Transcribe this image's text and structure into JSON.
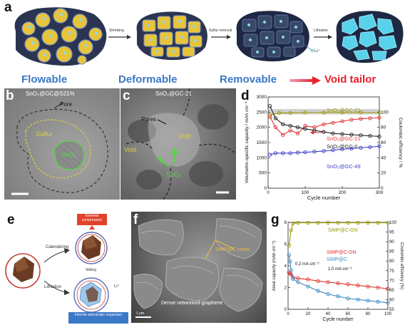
{
  "panels": {
    "a": {
      "label": "a",
      "arrows": [
        "Shrinking",
        "Sulfur removal",
        "Lithiation"
      ],
      "ion_label": "Li⁺",
      "categories": [
        {
          "text": "Flowable",
          "color": "#3b78c3"
        },
        {
          "text": "Deformable",
          "color": "#3b78c3"
        },
        {
          "text": "Removable",
          "color": "#3b78c3"
        },
        {
          "text": "Void tailor",
          "color": "#e8202a"
        }
      ]
    },
    "b": {
      "label": "b",
      "title": "SnO₂@GC@S21%",
      "labels": [
        "Pore",
        "Sulfur",
        "SnO₂"
      ]
    },
    "c": {
      "label": "c",
      "title": "SnO₂@GC-21",
      "labels": [
        "Pores",
        "Void",
        "Void",
        "SnO₂"
      ]
    },
    "d": {
      "label": "d"
    },
    "e": {
      "label": "e",
      "labels": [
        "External compression",
        "Calendering",
        "Sliding",
        "Lithiation",
        "Li⁺",
        "Internal anisotropic expansion"
      ]
    },
    "f": {
      "label": "f",
      "labels": [
        "SiMP@C cores",
        "Dense networked-graphene",
        "1 μm"
      ]
    },
    "g": {
      "label": "g"
    }
  },
  "chart_data": [
    {
      "panel": "d",
      "type": "scatter",
      "xlabel": "Cycle number",
      "ylabel": "Volumetric-specific capacity / mAh cm⁻³",
      "y2label": "Coulombic efficiency / %",
      "xlim": [
        0,
        300
      ],
      "ylim": [
        0,
        3000
      ],
      "y2lim": [
        0,
        120
      ],
      "xticks": [
        0,
        100,
        200,
        300
      ],
      "yticks": [
        0,
        500,
        1000,
        1500,
        2000,
        2500,
        3000
      ],
      "y2ticks": [
        0,
        20,
        40,
        60,
        80,
        100
      ],
      "series": [
        {
          "name": "SnO₂@GC-21",
          "axis": "y2",
          "color": "#9a9a00",
          "points": [
            [
              5,
              96
            ],
            [
              30,
              99
            ],
            [
              60,
              99
            ],
            [
              100,
              99.5
            ],
            [
              150,
              99.5
            ],
            [
              200,
              99.5
            ],
            [
              250,
              99.5
            ],
            [
              300,
              99.5
            ]
          ]
        },
        {
          "name": "SnO₂@GC-21",
          "axis": "y",
          "color": "#e0312f",
          "points": [
            [
              5,
              2350
            ],
            [
              20,
              2000
            ],
            [
              40,
              1750
            ],
            [
              60,
              1900
            ],
            [
              80,
              1800
            ],
            [
              100,
              2050
            ],
            [
              125,
              2000
            ],
            [
              150,
              2100
            ],
            [
              175,
              2150
            ],
            [
              200,
              2200
            ],
            [
              225,
              2250
            ],
            [
              250,
              2280
            ],
            [
              275,
              2300
            ],
            [
              300,
              2320
            ]
          ]
        },
        {
          "name": "SnO₂@GC-0",
          "axis": "y",
          "color": "#222222",
          "points": [
            [
              5,
              2700
            ],
            [
              20,
              2300
            ],
            [
              40,
              2100
            ],
            [
              60,
              2050
            ],
            [
              80,
              2000
            ],
            [
              100,
              1950
            ],
            [
              125,
              1900
            ],
            [
              150,
              1850
            ],
            [
              175,
              1800
            ],
            [
              200,
              1780
            ],
            [
              225,
              1760
            ],
            [
              250,
              1740
            ],
            [
              275,
              1720
            ],
            [
              300,
              1700
            ]
          ]
        },
        {
          "name": "SnO₂@GC-49",
          "axis": "y",
          "color": "#3c3cc8",
          "points": [
            [
              5,
              1100
            ],
            [
              20,
              1150
            ],
            [
              40,
              1150
            ],
            [
              60,
              1150
            ],
            [
              80,
              1170
            ],
            [
              100,
              1180
            ],
            [
              125,
              1200
            ],
            [
              150,
              1220
            ],
            [
              175,
              1250
            ],
            [
              200,
              1280
            ],
            [
              225,
              1300
            ],
            [
              250,
              1330
            ],
            [
              275,
              1350
            ],
            [
              300,
              1380
            ]
          ]
        }
      ]
    },
    {
      "panel": "g",
      "type": "scatter",
      "xlabel": "Cycle number",
      "ylabel": "Areal capacity (mAh cm⁻²)",
      "y2label": "Coulombic efficiency (%)",
      "xlim": [
        0,
        100
      ],
      "ylim": [
        0,
        8
      ],
      "y2lim": [
        55,
        100
      ],
      "xticks": [
        0,
        20,
        40,
        60,
        80,
        100
      ],
      "yticks": [
        0,
        2,
        4,
        6,
        8
      ],
      "y2ticks": [
        55,
        60,
        65,
        70,
        75,
        80,
        85,
        90,
        95,
        100
      ],
      "annotations": [
        "0.2 mA cm⁻²",
        "1.0 mA cm⁻²"
      ],
      "series": [
        {
          "name": "SiMP@C-GN",
          "axis": "y2",
          "color": "#9a9a00",
          "points": [
            [
              1,
              88
            ],
            [
              3,
              96
            ],
            [
              5,
              99.5
            ],
            [
              10,
              99.8
            ],
            [
              20,
              99.8
            ],
            [
              30,
              99.8
            ],
            [
              40,
              99.8
            ],
            [
              50,
              99.8
            ],
            [
              60,
              99.8
            ],
            [
              70,
              99.8
            ],
            [
              80,
              99.8
            ],
            [
              90,
              99.8
            ],
            [
              100,
              99.8
            ]
          ]
        },
        {
          "name": "SiMP@C-GN",
          "axis": "y",
          "color": "#e0312f",
          "points": [
            [
              1,
              3.4
            ],
            [
              2,
              3.3
            ],
            [
              3,
              3.2
            ],
            [
              5,
              2.95
            ],
            [
              10,
              2.85
            ],
            [
              20,
              2.75
            ],
            [
              30,
              2.6
            ],
            [
              40,
              2.5
            ],
            [
              50,
              2.4
            ],
            [
              60,
              2.3
            ],
            [
              70,
              2.2
            ],
            [
              80,
              2.1
            ],
            [
              90,
              2.0
            ],
            [
              100,
              1.9
            ]
          ]
        },
        {
          "name": "SiMP@C",
          "axis": "y",
          "color": "#3c8cc8",
          "points": [
            [
              1,
              5.0
            ],
            [
              2,
              4.4
            ],
            [
              3,
              3.6
            ],
            [
              5,
              2.8
            ],
            [
              10,
              2.5
            ],
            [
              20,
              2.1
            ],
            [
              30,
              1.7
            ],
            [
              40,
              1.4
            ],
            [
              50,
              1.2
            ],
            [
              60,
              1.0
            ],
            [
              70,
              0.9
            ],
            [
              80,
              0.8
            ],
            [
              90,
              0.7
            ],
            [
              100,
              0.6
            ]
          ]
        }
      ]
    }
  ]
}
